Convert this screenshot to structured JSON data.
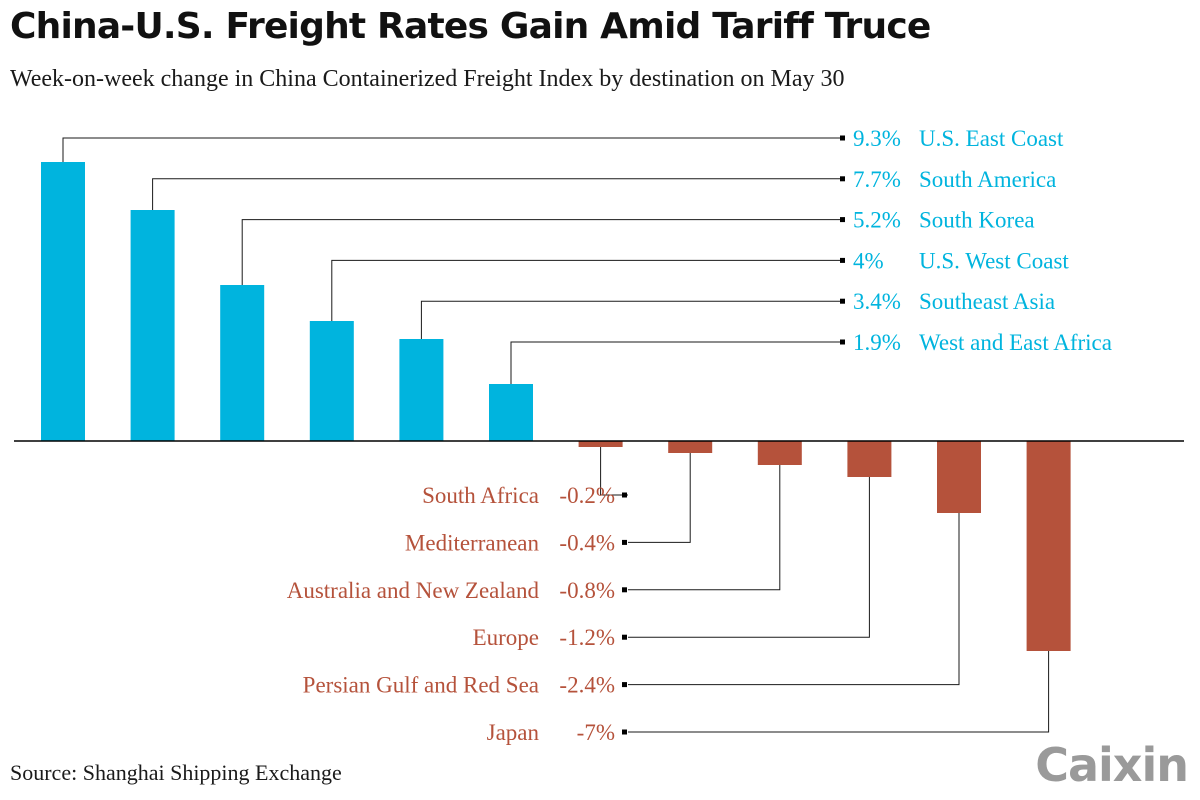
{
  "title": "China-U.S. Freight Rates Gain Amid Tariff Truce",
  "subtitle": "Week-on-week change in China Containerized Freight Index by destination on May 30",
  "source": "Source: Shanghai Shipping Exchange",
  "logo": "Caixin",
  "colors": {
    "positive": "#00b4de",
    "negative": "#b5523b",
    "axis": "#000000",
    "leader": "#1a1a1a"
  },
  "chart_data": {
    "type": "bar",
    "categories": [
      "U.S. East Coast",
      "South America",
      "South Korea",
      "U.S. West Coast",
      "Southeast Asia",
      "West and East Africa",
      "South Africa",
      "Mediterranean",
      "Australia and New Zealand",
      "Europe",
      "Persian Gulf and Red Sea",
      "Japan"
    ],
    "values": [
      9.3,
      7.7,
      5.2,
      4,
      3.4,
      1.9,
      -0.2,
      -0.4,
      -0.8,
      -1.2,
      -2.4,
      -7
    ],
    "value_labels": [
      "9.3%",
      "7.7%",
      "5.2%",
      "4%",
      "3.4%",
      "1.9%",
      "-0.2%",
      "-0.4%",
      "-0.8%",
      "-1.2%",
      "-2.4%",
      "-7%"
    ],
    "ylim": [
      -7,
      9.3
    ],
    "grid": false,
    "legend": "none"
  }
}
